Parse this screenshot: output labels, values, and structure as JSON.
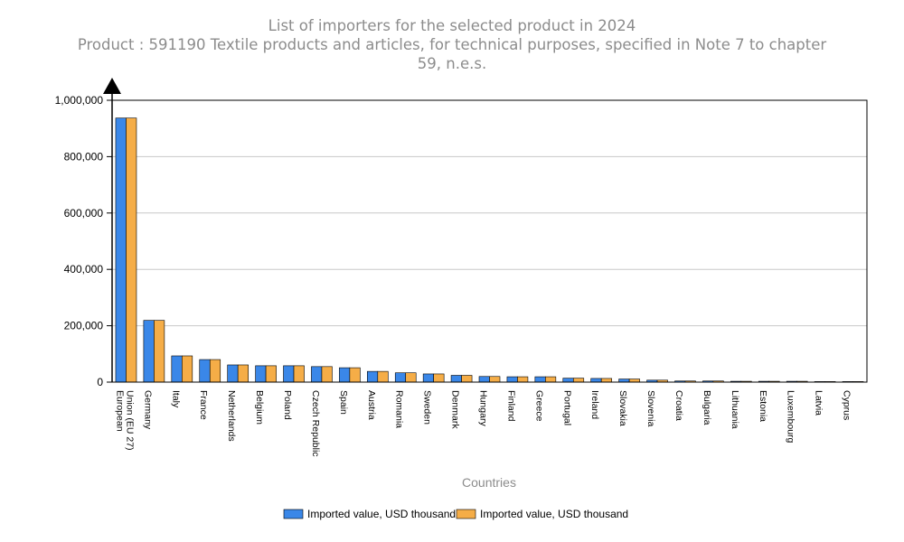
{
  "chart_data": {
    "type": "bar",
    "title": "List of importers for the selected product in 2024",
    "subtitle": [
      "Product : 591190 Textile products and articles, for technical purposes, specified in Note 7 to chapter",
      "59, n.e.s."
    ],
    "xlabel": "Countries",
    "ylabel": "",
    "ylim": [
      0,
      1000000
    ],
    "yticks": [
      0,
      200000,
      400000,
      600000,
      800000,
      1000000
    ],
    "ytick_labels": [
      "0",
      "200,000",
      "400,000",
      "600,000",
      "800,000",
      "1,000,000"
    ],
    "grid": true,
    "legend_position": "bottom-center",
    "categories": [
      [
        "European",
        "Union (EU 27)"
      ],
      [
        "Germany"
      ],
      [
        "Italy"
      ],
      [
        "France"
      ],
      [
        "Netherlands"
      ],
      [
        "Belgium"
      ],
      [
        "Poland"
      ],
      [
        "Czech Republic"
      ],
      [
        "Spain"
      ],
      [
        "Austria"
      ],
      [
        "Romania"
      ],
      [
        "Sweden"
      ],
      [
        "Denmark"
      ],
      [
        "Hungary"
      ],
      [
        "Finland"
      ],
      [
        "Greece"
      ],
      [
        "Portugal"
      ],
      [
        "Ireland"
      ],
      [
        "Slovakia"
      ],
      [
        "Slovenia"
      ],
      [
        "Croatia"
      ],
      [
        "Bulgaria"
      ],
      [
        "Lithuania"
      ],
      [
        "Estonia"
      ],
      [
        "Luxembourg"
      ],
      [
        "Latvia"
      ],
      [
        "Cyprus"
      ]
    ],
    "series": [
      {
        "name": "Imported value, USD thousand",
        "color": "#3a87e8",
        "values": [
          937000,
          219000,
          93000,
          80000,
          61000,
          58000,
          58000,
          55000,
          51000,
          38000,
          33000,
          29000,
          24000,
          20000,
          19000,
          19000,
          14000,
          13000,
          11000,
          7000,
          4000,
          4000,
          3000,
          3000,
          3000,
          2000,
          2000
        ]
      },
      {
        "name": "Imported value, USD thousand",
        "color": "#f5ad47",
        "values": [
          937000,
          219000,
          93000,
          80000,
          61000,
          58000,
          58000,
          55000,
          51000,
          38000,
          33000,
          29000,
          24000,
          20000,
          19000,
          19000,
          14000,
          13000,
          11000,
          7000,
          4000,
          4000,
          3000,
          3000,
          3000,
          2000,
          2000
        ]
      }
    ]
  }
}
